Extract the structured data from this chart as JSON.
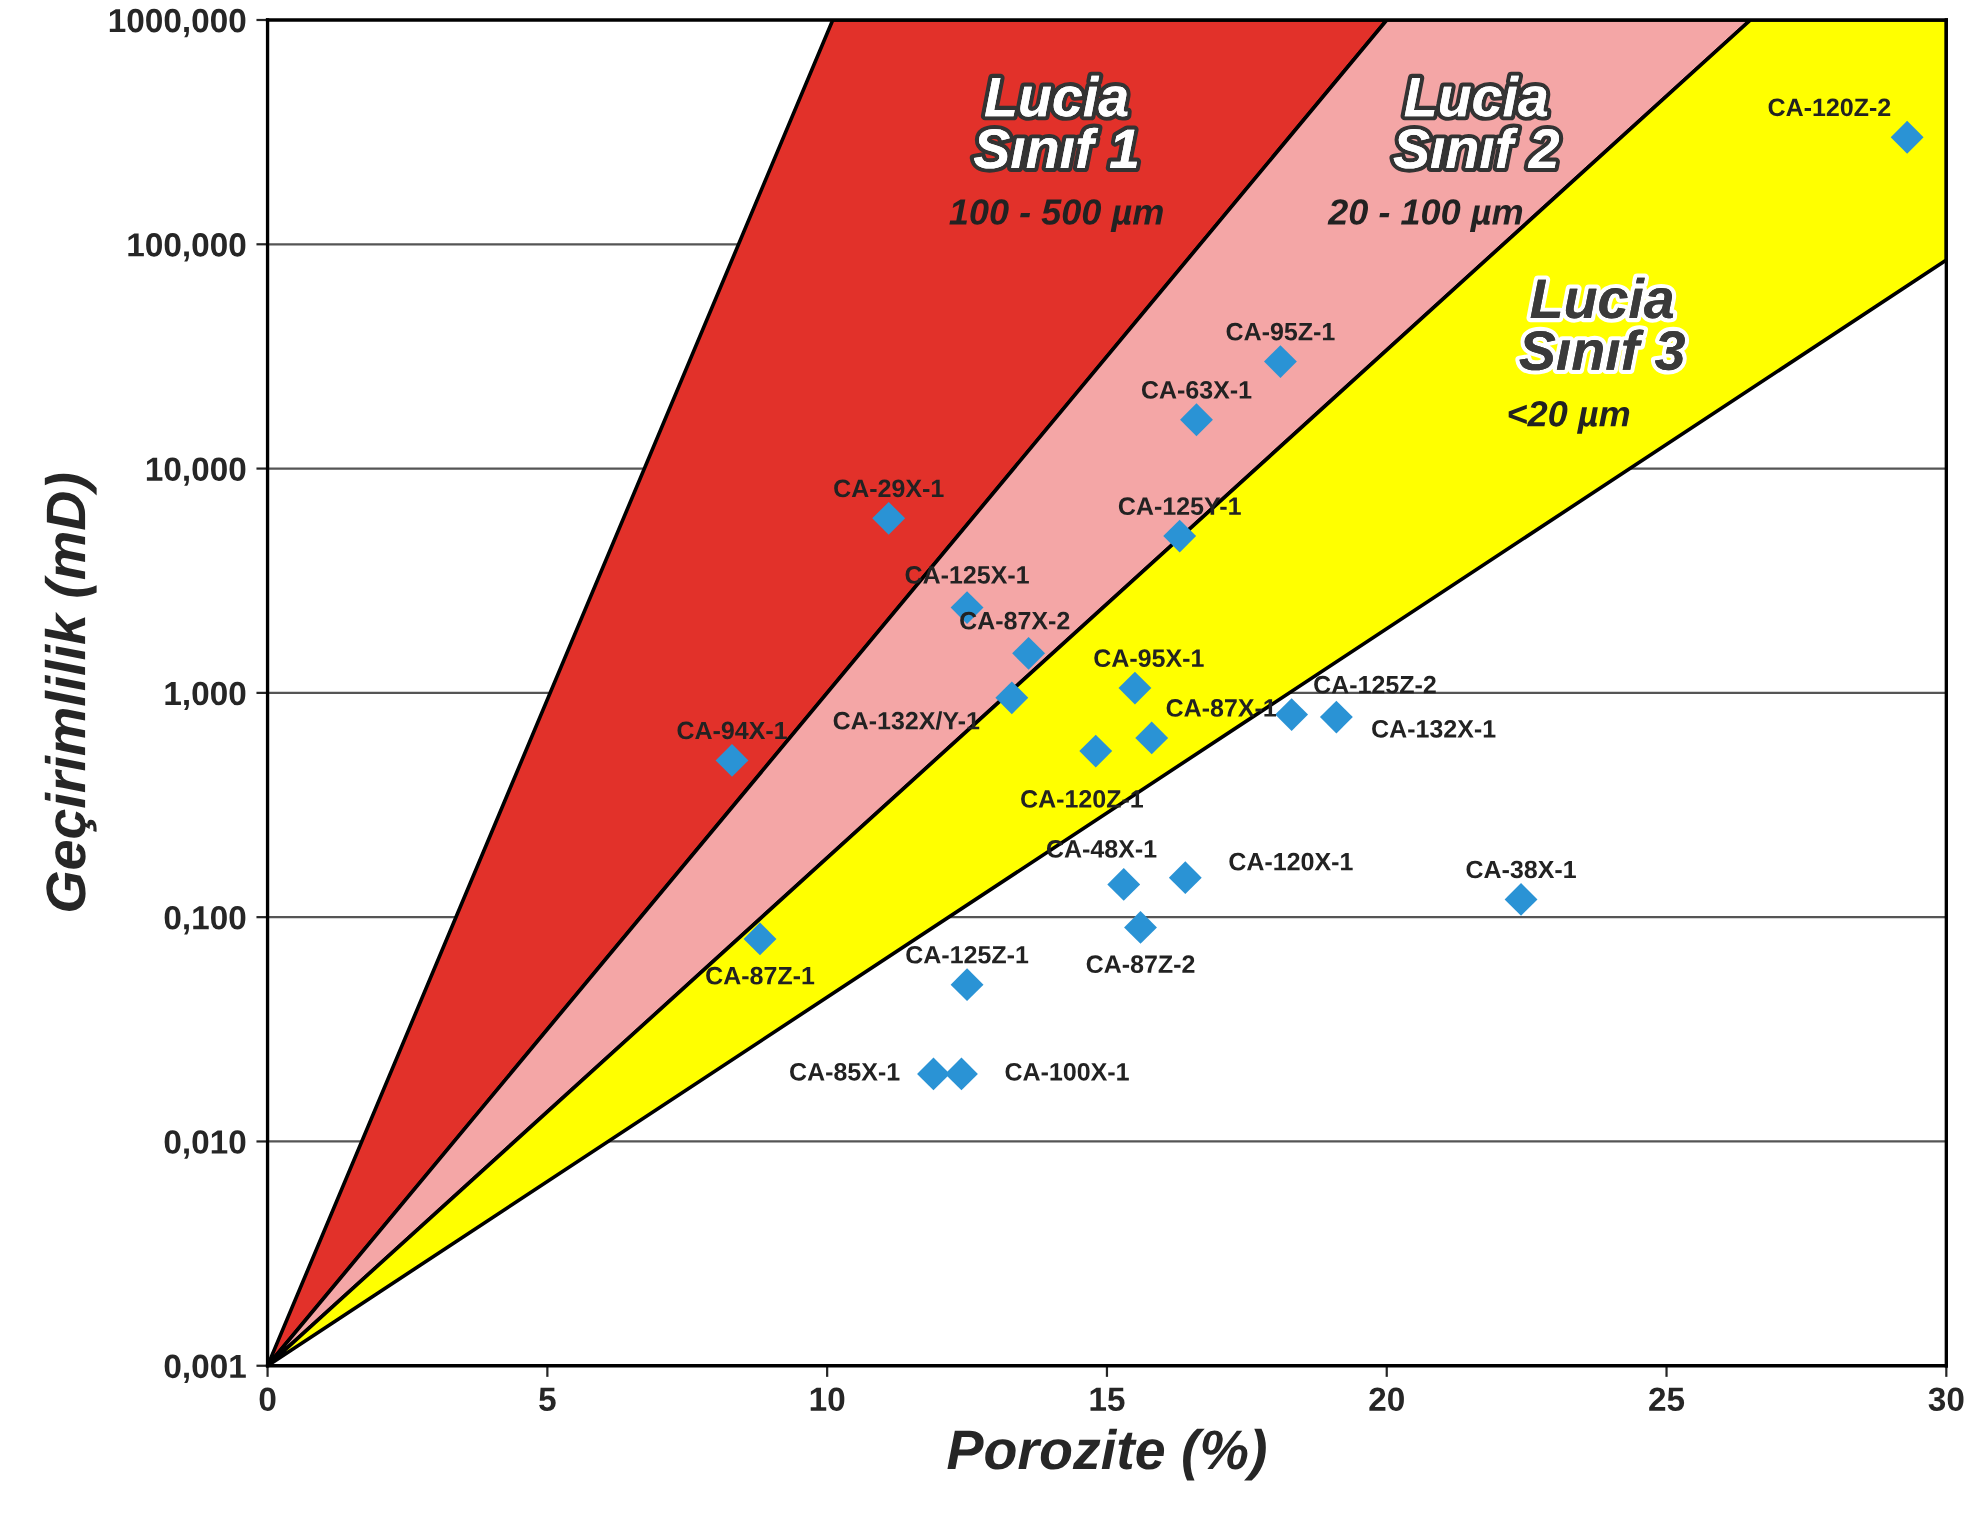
{
  "chart_data": {
    "type": "scatter",
    "xlabel": "Porozite (%)",
    "ylabel": "Geçirimlilik (mD)",
    "log": "y",
    "grid": "y",
    "xlim": [
      0,
      30
    ],
    "xticks": [
      0,
      5,
      10,
      15,
      20,
      25,
      30
    ],
    "ylim": [
      0.001,
      1000
    ],
    "yticks": [
      {
        "value": 0.001,
        "label": "0,001"
      },
      {
        "value": 0.01,
        "label": "0,010"
      },
      {
        "value": 0.1,
        "label": "0,100"
      },
      {
        "value": 1,
        "label": "1,000"
      },
      {
        "value": 10,
        "label": "10,000"
      },
      {
        "value": 100,
        "label": "100,000"
      },
      {
        "value": 1000,
        "label": "1000,000"
      }
    ],
    "series": [
      {
        "type": "area",
        "color": "#e2312a",
        "x": [
          0,
          10.1,
          20
        ],
        "values": [
          0.001,
          1000,
          1000
        ]
      },
      {
        "type": "area",
        "color": "#f4a6a6",
        "x": [
          0,
          20,
          26.5
        ],
        "values": [
          0.001,
          1000,
          1000
        ]
      },
      {
        "type": "area",
        "color": "#ffff00",
        "x": [
          0,
          26.5,
          30,
          30
        ],
        "values": [
          0.001,
          1000,
          1000,
          85
        ]
      },
      {
        "type": "scatter",
        "color": "#2a93d5",
        "marker": "diamond",
        "x": [
          29.3,
          18.1,
          16.6,
          11.1,
          16.3,
          12.5,
          13.6,
          13.3,
          15.5,
          8.3,
          14.8,
          15.8,
          18.3,
          19.1,
          15.3,
          16.4,
          22.4,
          15.6,
          8.8,
          12.5,
          11.9,
          12.4
        ],
        "values": [
          300,
          30,
          16.5,
          6,
          5,
          2.4,
          1.5,
          0.95,
          1.05,
          0.5,
          0.55,
          0.63,
          0.8,
          0.78,
          0.14,
          0.15,
          0.12,
          0.09,
          0.08,
          0.05,
          0.02,
          0.02
        ]
      }
    ],
    "annotations": [
      {
        "text": "CA-120Z-2",
        "x": 29.3,
        "y": 300
      },
      {
        "text": "CA-95Z-1",
        "x": 18.1,
        "y": 30
      },
      {
        "text": "CA-63X-1",
        "x": 16.6,
        "y": 16.5
      },
      {
        "text": "CA-29X-1",
        "x": 11.1,
        "y": 6
      },
      {
        "text": "CA-125Y-1",
        "x": 16.3,
        "y": 5
      },
      {
        "text": "CA-125X-1",
        "x": 12.5,
        "y": 2.4
      },
      {
        "text": "CA-87X-2",
        "x": 13.6,
        "y": 1.5
      },
      {
        "text": "CA-132X/Y-1",
        "x": 13.3,
        "y": 0.95
      },
      {
        "text": "CA-95X-1",
        "x": 15.5,
        "y": 1.05
      },
      {
        "text": "CA-94X-1",
        "x": 8.3,
        "y": 0.5
      },
      {
        "text": "CA-120Z-1",
        "x": 14.8,
        "y": 0.55
      },
      {
        "text": "CA-87X-1",
        "x": 15.8,
        "y": 0.63
      },
      {
        "text": "CA-125Z-2",
        "x": 18.3,
        "y": 0.8
      },
      {
        "text": "CA-132X-1",
        "x": 19.1,
        "y": 0.78
      },
      {
        "text": "CA-48X-1",
        "x": 15.3,
        "y": 0.14
      },
      {
        "text": "CA-120X-1",
        "x": 16.4,
        "y": 0.15
      },
      {
        "text": "CA-38X-1",
        "x": 22.4,
        "y": 0.12
      },
      {
        "text": "CA-87Z-2",
        "x": 15.6,
        "y": 0.09
      },
      {
        "text": "CA-87Z-1",
        "x": 8.8,
        "y": 0.08
      },
      {
        "text": "CA-125Z-1",
        "x": 12.5,
        "y": 0.05
      },
      {
        "text": "CA-85X-1",
        "x": 11.9,
        "y": 0.02
      },
      {
        "text": "CA-100X-1",
        "x": 12.4,
        "y": 0.02
      },
      "Lucia\nSınıf 1",
      "100 - 500 µm",
      "Lucia\nSınıf 2",
      "20 - 100 µm",
      "Lucia\nSınıf 3",
      "<20 µm"
    ]
  }
}
